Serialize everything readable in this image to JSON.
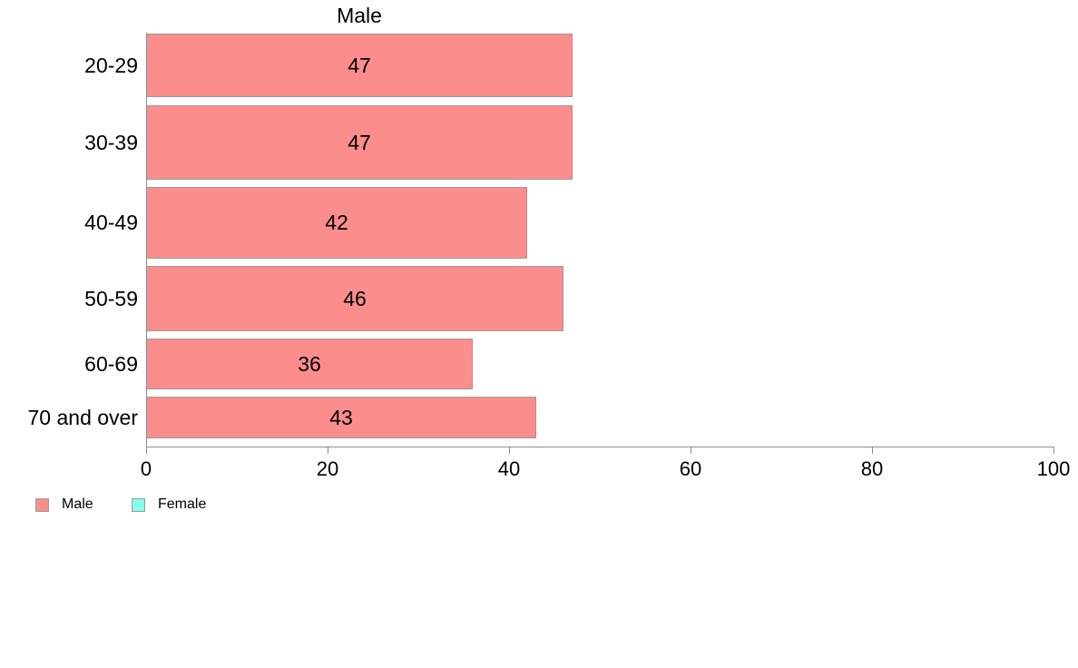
{
  "chart_data": {
    "type": "bar",
    "orientation": "horizontal",
    "title": "Male",
    "categories": [
      "20-29",
      "30-39",
      "40-49",
      "50-59",
      "60-69",
      "70 and over"
    ],
    "series": [
      {
        "name": "Male",
        "values": [
          47,
          47,
          42,
          46,
          36,
          43
        ],
        "color": "#fc8d8d"
      },
      {
        "name": "Female",
        "color": "#86ffec"
      }
    ],
    "bar_labels": [
      "47",
      "47",
      "42",
      "46",
      "36",
      "43"
    ],
    "xlabel": "",
    "ylabel": "",
    "xlim": [
      0,
      100
    ],
    "x_ticks": [
      "0",
      "20",
      "40",
      "60",
      "80",
      "100"
    ],
    "grid": "off",
    "legend_position": "bottom-left",
    "axis_color": "#8c8c8c",
    "bar_border_color": "#9a9a9a",
    "value_label_color": "#000000"
  },
  "legend": [
    {
      "label": "Male",
      "color": "#fc8d8d",
      "border": "#9a9a9a"
    },
    {
      "label": "Female",
      "color": "#86ffec",
      "border": "#9a9a9a"
    }
  ]
}
